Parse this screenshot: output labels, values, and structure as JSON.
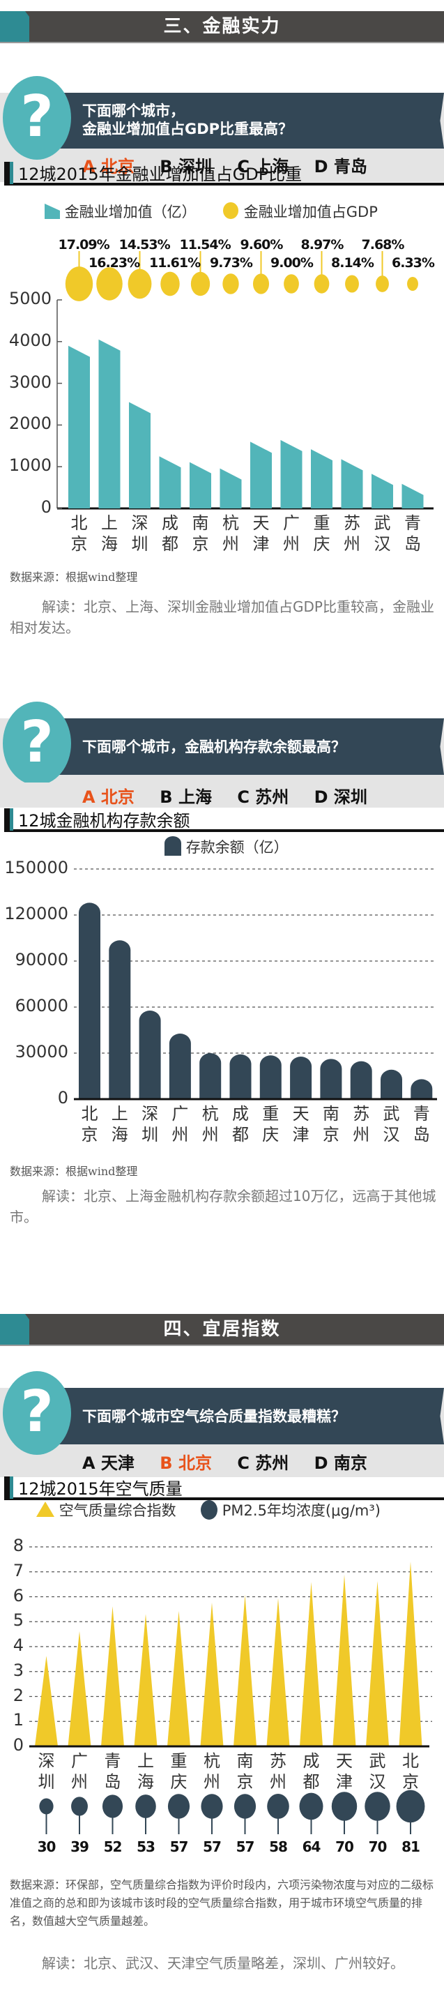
{
  "section3": {
    "title": "三、金融实力"
  },
  "q1": {
    "icon": "question-mark-icon",
    "symbol": "?",
    "line1": "下面哪个城市，",
    "line2": "金融业增加值占GDP比重最高？",
    "options": [
      {
        "label": "A 北京",
        "correct": true
      },
      {
        "label": "B 深圳",
        "correct": false
      },
      {
        "label": "C 上海",
        "correct": false
      },
      {
        "label": "D 青岛",
        "correct": false
      }
    ]
  },
  "chart1": {
    "title": "12城2015年金融业增加值占GDP比重",
    "legend_bar": "金融业增加值（亿）",
    "legend_circle": "金融业增加值占GDP",
    "source": "数据来源：根据wind整理",
    "interp": "解读：北京、上海、深圳金融业增加值占GDP比重较高，金融业相对发达。"
  },
  "q2": {
    "icon": "question-mark-icon",
    "symbol": "?",
    "line1": "下面哪个城市，金融机构存款余额最高？",
    "options": [
      {
        "label": "A 北京",
        "correct": true
      },
      {
        "label": "B 上海",
        "correct": false
      },
      {
        "label": "C 苏州",
        "correct": false
      },
      {
        "label": "D 深圳",
        "correct": false
      }
    ]
  },
  "chart2": {
    "title": "12城金融机构存款余额",
    "legend": "存款余额（亿）",
    "source": "数据来源：根据wind整理",
    "interp": "解读：北京、上海金融机构存款余额超过10万亿，远高于其他城市。"
  },
  "section4": {
    "title": "四、宜居指数"
  },
  "q3": {
    "icon": "question-mark-icon",
    "symbol": "?",
    "line1": "下面哪个城市空气综合质量指数最糟糕？",
    "options": [
      {
        "label": "A 天津",
        "correct": false
      },
      {
        "label": "B 北京",
        "correct": true
      },
      {
        "label": "C 苏州",
        "correct": false
      },
      {
        "label": "D 南京",
        "correct": false
      }
    ]
  },
  "chart3": {
    "title": "12城2015年空气质量",
    "legend_tri": "空气质量综合指数",
    "legend_circle": "PM2.5年均浓度(μg/m³)",
    "source": "数据来源：环保部，空气质量综合指数为评价时段内，六项污染物浓度与对应的二级标准值之商的总和即为该城市该时段的空气质量综合指数，用于城市环境空气质量的排名，数值越大空气质量越差。",
    "interp": "解读：北京、武汉、天津空气质量略差，深圳、广州较好。"
  },
  "colors": {
    "teal": "#52b5b9",
    "yellow": "#f0c929",
    "navy": "#334756",
    "orange": "#e8531b",
    "header": "#4a4846"
  },
  "chart_data": [
    {
      "type": "bar",
      "title": "12城2015年金融业增加值占GDP比重",
      "categories": [
        "北京",
        "上海",
        "深圳",
        "成都",
        "南京",
        "杭州",
        "天津",
        "广州",
        "重庆",
        "苏州",
        "武汉",
        "青岛"
      ],
      "series": [
        {
          "name": "金融业增加值（亿）",
          "values": [
            3900,
            4050,
            2550,
            1250,
            1110,
            960,
            1600,
            1640,
            1420,
            1180,
            830,
            590
          ]
        },
        {
          "name": "金融业增加值占GDP",
          "values": [
            17.09,
            16.23,
            14.53,
            11.61,
            11.54,
            9.73,
            9.6,
            9.0,
            8.97,
            8.14,
            7.68,
            6.33
          ],
          "labels": [
            "17.09%",
            "16.23%",
            "14.53%",
            "11.61%",
            "11.54%",
            "9.73%",
            "9.60%",
            "9.00%",
            "8.97%",
            "8.14%",
            "7.68%",
            "6.33%"
          ]
        }
      ],
      "yticks": [
        0,
        1000,
        2000,
        3000,
        4000,
        5000
      ],
      "ylim": [
        0,
        5000
      ],
      "xlabel": "",
      "ylabel": "",
      "grid": false,
      "legend_position": "top"
    },
    {
      "type": "bar",
      "title": "12城金融机构存款余额",
      "categories": [
        "北京",
        "上海",
        "深圳",
        "广州",
        "杭州",
        "成都",
        "重庆",
        "天津",
        "南京",
        "苏州",
        "武汉",
        "青岛"
      ],
      "series": [
        {
          "name": "存款余额（亿）",
          "values": [
            128000,
            103500,
            57700,
            42700,
            30000,
            29200,
            28500,
            27700,
            26200,
            24700,
            19200,
            13000
          ]
        }
      ],
      "yticks": [
        0,
        30000,
        60000,
        90000,
        120000,
        150000
      ],
      "ylim": [
        0,
        150000
      ],
      "grid": true,
      "legend_position": "top"
    },
    {
      "type": "bar",
      "title": "12城2015年空气质量",
      "categories": [
        "深圳",
        "广州",
        "青岛",
        "上海",
        "重庆",
        "杭州",
        "南京",
        "苏州",
        "成都",
        "天津",
        "武汉",
        "北京"
      ],
      "series": [
        {
          "name": "空气质量综合指数",
          "values": [
            3.63,
            4.62,
            5.62,
            5.31,
            5.43,
            5.77,
            6.08,
            5.94,
            6.59,
            6.89,
            6.63,
            7.42
          ]
        },
        {
          "name": "PM2.5年均浓度(μg/m³)",
          "values": [
            30,
            39,
            52,
            53,
            57,
            57,
            57,
            58,
            64,
            70,
            70,
            81
          ]
        }
      ],
      "yticks": [
        0,
        1,
        2,
        3,
        4,
        5,
        6,
        7,
        8
      ],
      "ylim": [
        0,
        8
      ],
      "grid": true,
      "legend_position": "top"
    }
  ]
}
